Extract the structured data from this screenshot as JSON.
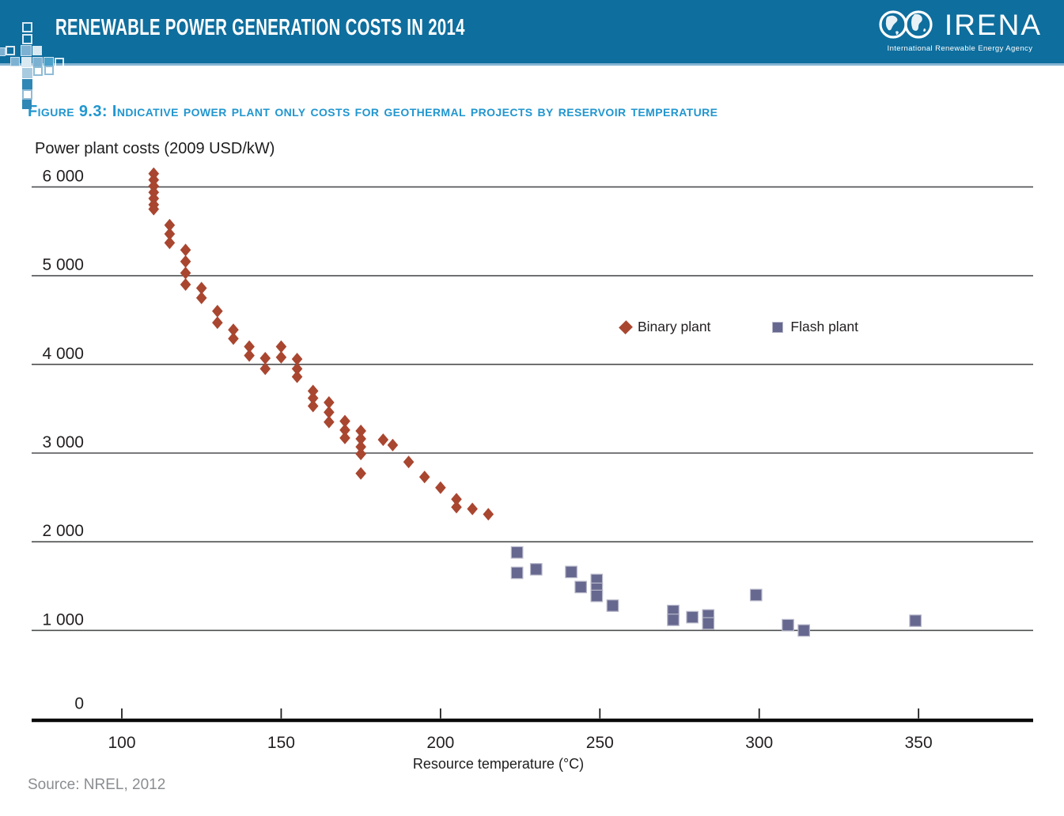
{
  "header": {
    "title": "RENEWABLE POWER GENERATION COSTS IN 2014",
    "banner_color": "#0e6e9e",
    "logo": {
      "name": "IRENA",
      "tagline": "International Renewable Energy Agency"
    }
  },
  "source": "Source: NREL, 2012",
  "chart_data": {
    "type": "scatter",
    "title": "Figure 9.3: Indicative power plant only costs for geothermal projects by reservoir temperature",
    "title_color": "#2196cf",
    "ylabel": "Power plant costs (2009 USD/kW)",
    "xlabel": "Resource temperature (°C)",
    "xlim": [
      72,
      386
    ],
    "ylim": [
      0,
      6300
    ],
    "xticks": [
      100,
      150,
      200,
      250,
      300,
      350
    ],
    "yticks": [
      {
        "value": 6000,
        "label": "6 000"
      },
      {
        "value": 5000,
        "label": "5 000"
      },
      {
        "value": 4000,
        "label": "4 000"
      },
      {
        "value": 3000,
        "label": "3 000"
      },
      {
        "value": 2000,
        "label": "2 000"
      },
      {
        "value": 1000,
        "label": "1 000"
      },
      {
        "value": 0,
        "label": "0"
      }
    ],
    "grid": "horizontal gridlines at every 1000 USD/kW",
    "legend_position": "inside upper right",
    "series": [
      {
        "name": "Binary plant",
        "marker": "diamond",
        "color": "#a94630",
        "points": [
          [
            110,
            6150
          ],
          [
            110,
            6080
          ],
          [
            110,
            6010
          ],
          [
            110,
            5940
          ],
          [
            110,
            5870
          ],
          [
            110,
            5800
          ],
          [
            110,
            5750
          ],
          [
            115,
            5570
          ],
          [
            115,
            5470
          ],
          [
            115,
            5370
          ],
          [
            120,
            5290
          ],
          [
            120,
            5160
          ],
          [
            120,
            5030
          ],
          [
            120,
            4900
          ],
          [
            125,
            4860
          ],
          [
            125,
            4750
          ],
          [
            130,
            4600
          ],
          [
            130,
            4470
          ],
          [
            135,
            4390
          ],
          [
            135,
            4290
          ],
          [
            140,
            4200
          ],
          [
            140,
            4100
          ],
          [
            145,
            4070
          ],
          [
            145,
            3950
          ],
          [
            150,
            4200
          ],
          [
            150,
            4080
          ],
          [
            155,
            4060
          ],
          [
            155,
            3950
          ],
          [
            155,
            3860
          ],
          [
            160,
            3700
          ],
          [
            160,
            3620
          ],
          [
            160,
            3530
          ],
          [
            165,
            3570
          ],
          [
            165,
            3460
          ],
          [
            165,
            3350
          ],
          [
            170,
            3360
          ],
          [
            170,
            3260
          ],
          [
            170,
            3170
          ],
          [
            175,
            3250
          ],
          [
            175,
            3160
          ],
          [
            175,
            3070
          ],
          [
            175,
            2990
          ],
          [
            175,
            2770
          ],
          [
            182,
            3150
          ],
          [
            185,
            3090
          ],
          [
            190,
            2900
          ],
          [
            195,
            2730
          ],
          [
            200,
            2610
          ],
          [
            205,
            2480
          ],
          [
            205,
            2390
          ],
          [
            210,
            2370
          ],
          [
            215,
            2310
          ]
        ]
      },
      {
        "name": "Flash plant",
        "marker": "square",
        "color": "#67688f",
        "points": [
          [
            224,
            1880
          ],
          [
            224,
            1650
          ],
          [
            230,
            1690
          ],
          [
            241,
            1660
          ],
          [
            244,
            1490
          ],
          [
            249,
            1570
          ],
          [
            249,
            1470
          ],
          [
            249,
            1390
          ],
          [
            254,
            1280
          ],
          [
            273,
            1220
          ],
          [
            273,
            1120
          ],
          [
            279,
            1150
          ],
          [
            284,
            1170
          ],
          [
            284,
            1080
          ],
          [
            299,
            1400
          ],
          [
            309,
            1060
          ],
          [
            314,
            1000
          ],
          [
            349,
            1110
          ]
        ]
      }
    ]
  }
}
